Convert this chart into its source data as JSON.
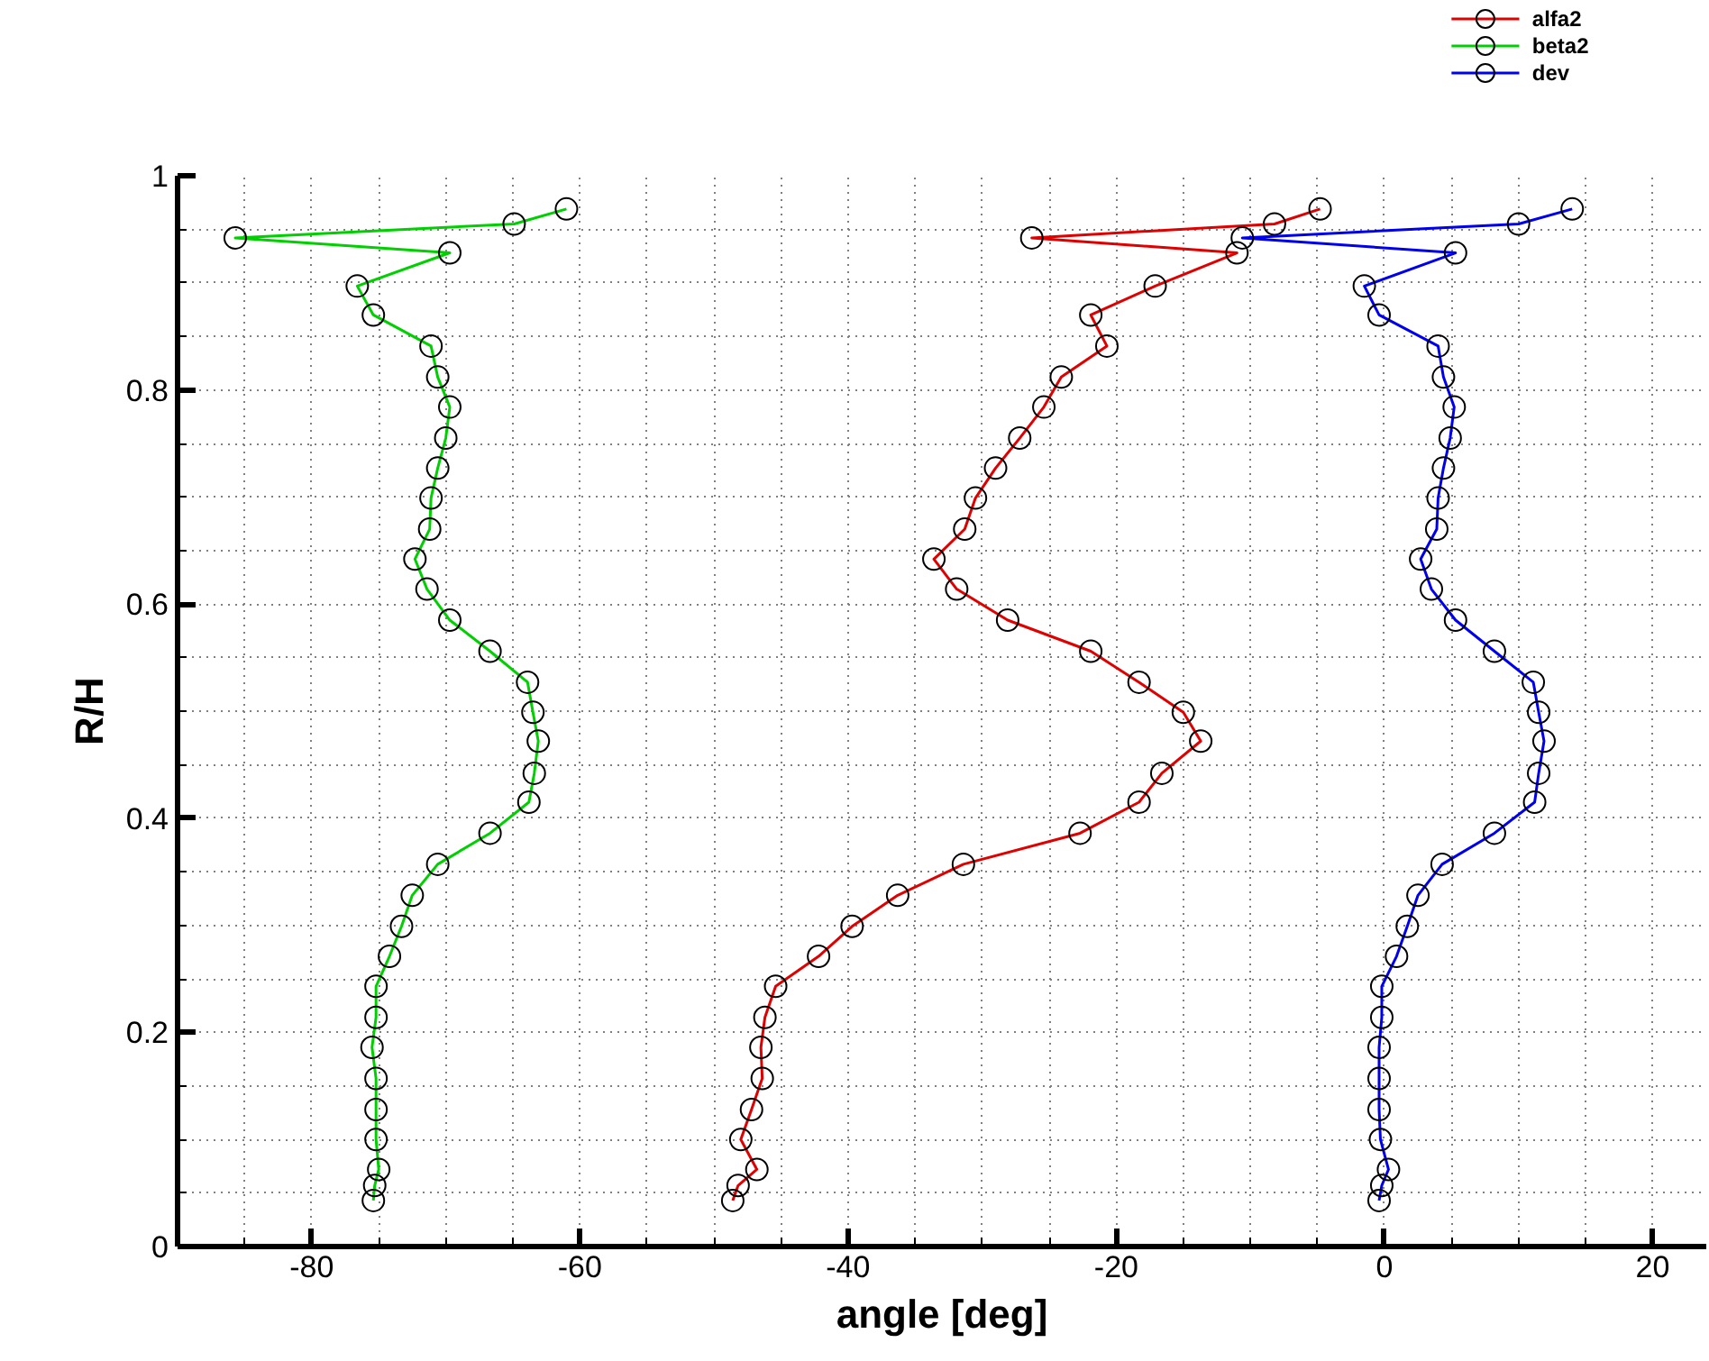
{
  "chart_data": {
    "type": "line",
    "xlabel": "angle [deg]",
    "ylabel": "R/H",
    "xlim": [
      -90,
      24
    ],
    "ylim": [
      0,
      1
    ],
    "xticks": [
      {
        "value": -90,
        "label": null
      },
      {
        "value": -85,
        "label": null
      },
      -80,
      {
        "value": -75,
        "label": null
      },
      {
        "value": -70,
        "label": null
      },
      {
        "value": -65,
        "label": null
      },
      -60,
      {
        "value": -55,
        "label": null
      },
      {
        "value": -50,
        "label": null
      },
      {
        "value": -45,
        "label": null
      },
      -40,
      {
        "value": -35,
        "label": null
      },
      {
        "value": -30,
        "label": null
      },
      {
        "value": -25,
        "label": null
      },
      -20,
      {
        "value": -15,
        "label": null
      },
      {
        "value": -10,
        "label": null
      },
      {
        "value": -5,
        "label": null
      },
      0,
      {
        "value": 5,
        "label": null
      },
      {
        "value": 10,
        "label": null
      },
      {
        "value": 15,
        "label": null
      },
      20
    ],
    "yticks": [
      0,
      {
        "value": 0.05,
        "label": null
      },
      {
        "value": 0.1,
        "label": null
      },
      {
        "value": 0.15,
        "label": null
      },
      0.2,
      {
        "value": 0.25,
        "label": null
      },
      {
        "value": 0.3,
        "label": null
      },
      {
        "value": 0.35,
        "label": null
      },
      0.4,
      {
        "value": 0.45,
        "label": null
      },
      {
        "value": 0.5,
        "label": null
      },
      {
        "value": 0.55,
        "label": null
      },
      0.6,
      {
        "value": 0.65,
        "label": null
      },
      {
        "value": 0.7,
        "label": null
      },
      {
        "value": 0.75,
        "label": null
      },
      0.8,
      {
        "value": 0.85,
        "label": null
      },
      {
        "value": 0.9,
        "label": null
      },
      {
        "value": 0.95,
        "label": null
      },
      1
    ],
    "grid": true,
    "legend": "top right",
    "marker": "circle",
    "line_style": "solid",
    "series": [
      {
        "name": "alfa2",
        "color": "#e00000",
        "x": [
          -4.8,
          -8.2,
          -26.3,
          -11.0,
          -17.1,
          -21.9,
          -20.7,
          -24.1,
          -25.4,
          -27.2,
          -29.0,
          -30.5,
          -31.3,
          -33.6,
          -31.9,
          -28.1,
          -21.9,
          -18.3,
          -15.0,
          -13.7,
          -16.6,
          -18.3,
          -22.7,
          -31.4,
          -36.3,
          -39.7,
          -42.2,
          -45.4,
          -46.2,
          -46.5,
          -46.4,
          -47.2,
          -48.0,
          -46.8,
          -48.2,
          -48.6
        ],
        "values": [
          0.969,
          0.955,
          0.942,
          0.928,
          0.897,
          0.87,
          0.841,
          0.812,
          0.784,
          0.755,
          0.727,
          0.699,
          0.67,
          0.642,
          0.614,
          0.585,
          0.556,
          0.527,
          0.499,
          0.472,
          0.442,
          0.415,
          0.386,
          0.357,
          0.328,
          0.299,
          0.271,
          0.243,
          0.214,
          0.186,
          0.157,
          0.128,
          0.1,
          0.072,
          0.057,
          0.043
        ]
      },
      {
        "name": "beta2",
        "color": "#00d000",
        "x": [
          -61.0,
          -64.9,
          -85.7,
          -69.7,
          -76.6,
          -75.4,
          -71.1,
          -70.6,
          -69.7,
          -70.0,
          -70.6,
          -71.1,
          -71.2,
          -72.3,
          -71.4,
          -69.7,
          -66.7,
          -63.9,
          -63.5,
          -63.1,
          -63.4,
          -63.8,
          -66.7,
          -70.6,
          -72.5,
          -73.3,
          -74.2,
          -75.2,
          -75.2,
          -75.5,
          -75.2,
          -75.2,
          -75.2,
          -75.0,
          -75.3,
          -75.4
        ],
        "values": [
          0.969,
          0.955,
          0.942,
          0.928,
          0.897,
          0.87,
          0.841,
          0.812,
          0.784,
          0.755,
          0.727,
          0.699,
          0.67,
          0.642,
          0.614,
          0.585,
          0.556,
          0.527,
          0.499,
          0.472,
          0.442,
          0.415,
          0.386,
          0.357,
          0.328,
          0.299,
          0.271,
          0.243,
          0.214,
          0.186,
          0.157,
          0.128,
          0.1,
          0.072,
          0.057,
          0.043
        ]
      },
      {
        "name": "dev",
        "color": "#0000f0",
        "x": [
          14.0,
          10.0,
          -10.6,
          5.3,
          -1.5,
          -0.4,
          4.0,
          4.4,
          5.2,
          4.9,
          4.4,
          4.0,
          3.9,
          2.7,
          3.5,
          5.3,
          8.2,
          11.1,
          11.5,
          11.9,
          11.5,
          11.2,
          8.2,
          4.3,
          2.5,
          1.7,
          0.9,
          -0.2,
          -0.2,
          -0.4,
          -0.4,
          -0.4,
          -0.3,
          0.3,
          -0.2,
          -0.4
        ],
        "values": [
          0.969,
          0.955,
          0.942,
          0.928,
          0.897,
          0.87,
          0.841,
          0.812,
          0.784,
          0.755,
          0.727,
          0.699,
          0.67,
          0.642,
          0.614,
          0.585,
          0.556,
          0.527,
          0.499,
          0.472,
          0.442,
          0.415,
          0.386,
          0.357,
          0.328,
          0.299,
          0.271,
          0.243,
          0.214,
          0.186,
          0.157,
          0.128,
          0.1,
          0.072,
          0.057,
          0.043
        ]
      }
    ]
  }
}
